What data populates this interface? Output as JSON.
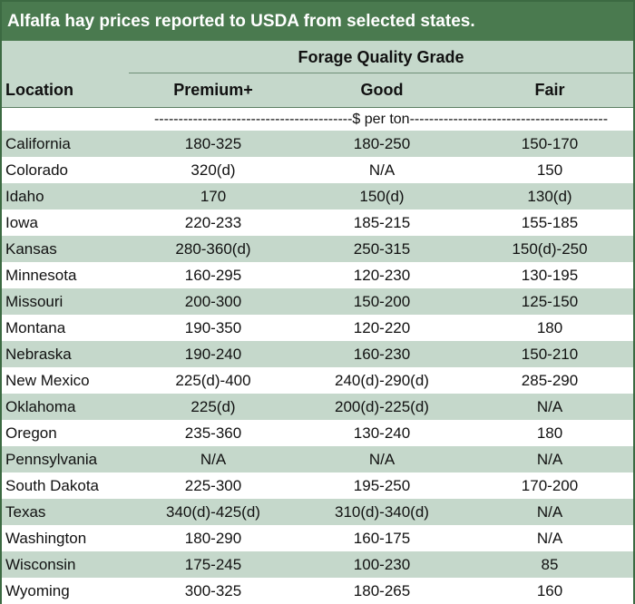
{
  "title": "Alfalfa hay prices reported to USDA from selected states.",
  "header": {
    "group_label": "Forage Quality Grade",
    "location_label": "Location",
    "columns": [
      "Premium+",
      "Good",
      "Fair"
    ]
  },
  "unit_label": "-----------------------------------------$ per ton-----------------------------------------",
  "rows": [
    {
      "location": "California",
      "premium": "180-325",
      "good": "180-250",
      "fair": "150-170"
    },
    {
      "location": "Colorado",
      "premium": "320(d)",
      "good": "N/A",
      "fair": "150"
    },
    {
      "location": "Idaho",
      "premium": "170",
      "good": "150(d)",
      "fair": "130(d)"
    },
    {
      "location": "Iowa",
      "premium": "220-233",
      "good": "185-215",
      "fair": "155-185"
    },
    {
      "location": "Kansas",
      "premium": "280-360(d)",
      "good": "250-315",
      "fair": "150(d)-250"
    },
    {
      "location": "Minnesota",
      "premium": "160-295",
      "good": "120-230",
      "fair": "130-195"
    },
    {
      "location": "Missouri",
      "premium": "200-300",
      "good": "150-200",
      "fair": "125-150"
    },
    {
      "location": "Montana",
      "premium": "190-350",
      "good": "120-220",
      "fair": "180"
    },
    {
      "location": "Nebraska",
      "premium": "190-240",
      "good": "160-230",
      "fair": "150-210"
    },
    {
      "location": "New Mexico",
      "premium": "225(d)-400",
      "good": "240(d)-290(d)",
      "fair": "285-290"
    },
    {
      "location": "Oklahoma",
      "premium": "225(d)",
      "good": "200(d)-225(d)",
      "fair": "N/A"
    },
    {
      "location": "Oregon",
      "premium": "235-360",
      "good": "130-240",
      "fair": "180"
    },
    {
      "location": "Pennsylvania",
      "premium": "N/A",
      "good": "N/A",
      "fair": "N/A"
    },
    {
      "location": "South Dakota",
      "premium": "225-300",
      "good": "195-250",
      "fair": "170-200"
    },
    {
      "location": "Texas",
      "premium": "340(d)-425(d)",
      "good": "310(d)-340(d)",
      "fair": "N/A"
    },
    {
      "location": "Washington",
      "premium": "180-290",
      "good": "160-175",
      "fair": "N/A"
    },
    {
      "location": "Wisconsin",
      "premium": "175-245",
      "good": "100-230",
      "fair": "85"
    },
    {
      "location": "Wyoming",
      "premium": "300-325",
      "good": "180-265",
      "fair": "160"
    }
  ],
  "colors": {
    "title_bg": "#4a7a4f",
    "band_bg": "#c5d8cb",
    "border": "#3c6a42"
  }
}
